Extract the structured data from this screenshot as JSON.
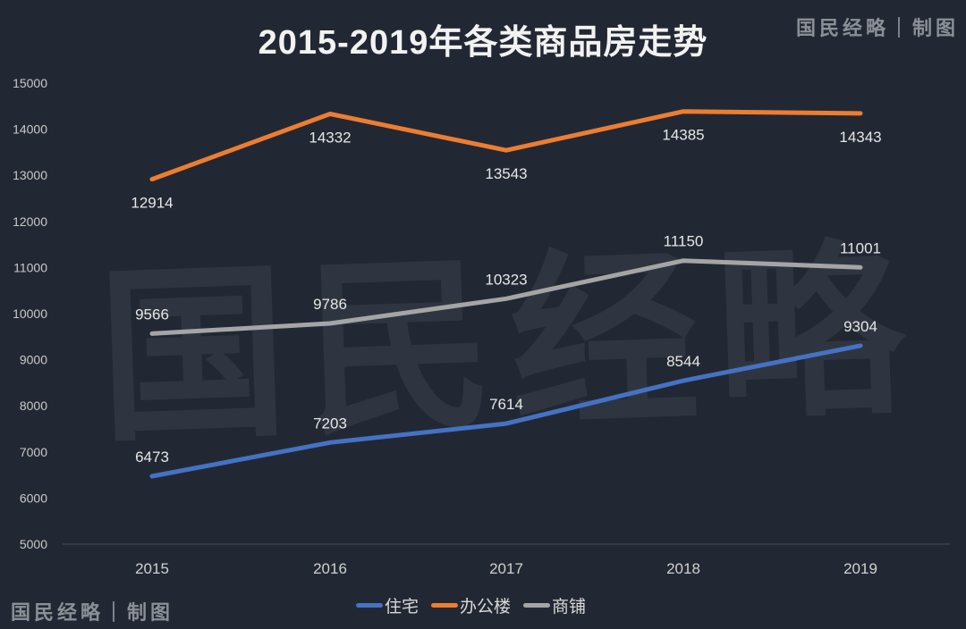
{
  "title": "2015-2019年各类商品房走势",
  "credit_top": "国民经略｜制图",
  "credit_bottom": "国民经略｜制图",
  "watermark": "国民经略",
  "colors": {
    "住宅": "#4472c4",
    "办公楼": "#ed7d31",
    "商铺": "#a5a5a5",
    "background": "#222833"
  },
  "legend": [
    {
      "name": "住宅",
      "color": "#4472c4"
    },
    {
      "name": "办公楼",
      "color": "#ed7d31"
    },
    {
      "name": "商铺",
      "color": "#a5a5a5"
    }
  ],
  "chart_data": {
    "type": "line",
    "title": "2015-2019年各类商品房走势",
    "xlabel": "",
    "ylabel": "",
    "categories": [
      "2015",
      "2016",
      "2017",
      "2018",
      "2019"
    ],
    "x": [
      "2015",
      "2016",
      "2017",
      "2018",
      "2019"
    ],
    "series": [
      {
        "name": "住宅",
        "color": "#4472c4",
        "values": [
          6473,
          7203,
          7614,
          8544,
          9304
        ]
      },
      {
        "name": "办公楼",
        "color": "#ed7d31",
        "values": [
          12914,
          14332,
          13543,
          14385,
          14343
        ]
      },
      {
        "name": "商铺",
        "color": "#a5a5a5",
        "values": [
          9566,
          9786,
          10323,
          11150,
          11001
        ]
      }
    ],
    "ylim": [
      5000,
      15000
    ],
    "yticks": [
      "15000",
      "14000",
      "13000",
      "12000",
      "11000",
      "10000",
      "9000",
      "8000",
      "7000",
      "6000",
      "5000"
    ],
    "grid": false,
    "data_labels": true,
    "legend_position": "bottom"
  }
}
